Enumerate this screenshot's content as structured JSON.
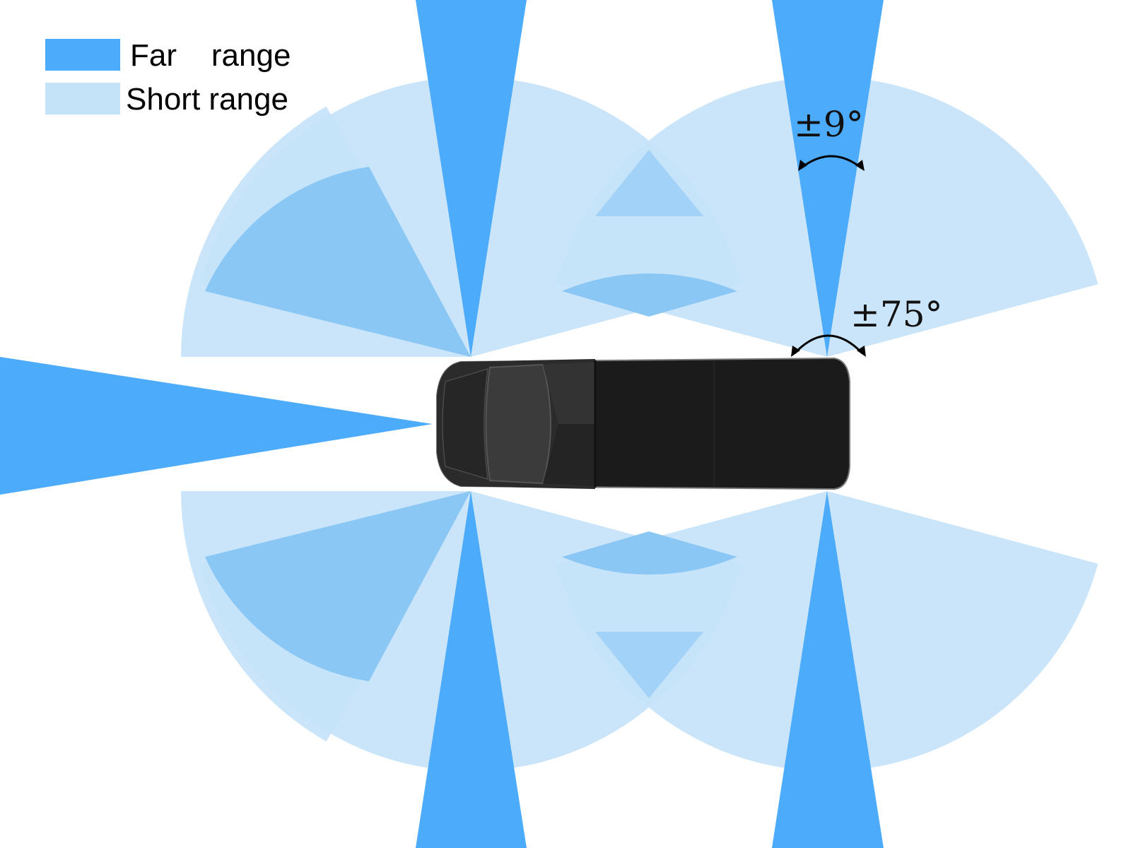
{
  "legend": {
    "far": {
      "label": "Far    range",
      "color": "#4dabfc"
    },
    "short": {
      "label": "Short range",
      "color": "#c4e2f8"
    }
  },
  "annotations": {
    "far_fov": "±9°",
    "short_fov": "±75°"
  },
  "colors": {
    "short_fill": "#c4e2f8",
    "overlap_fill": "#8ac7f5",
    "far_fill": "#4dabfc",
    "vehicle_body": "#1b1b1b",
    "vehicle_cab": "#2b2b2b"
  }
}
